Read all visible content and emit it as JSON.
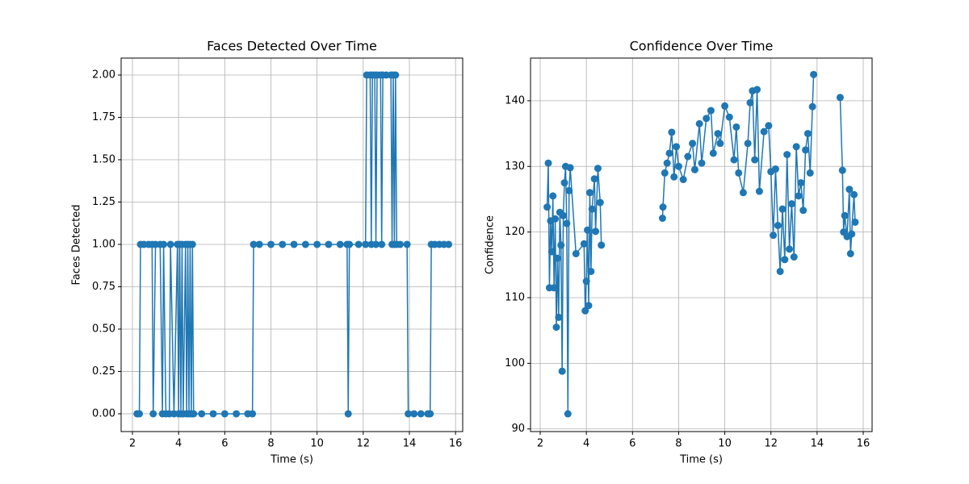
{
  "chart_data": [
    {
      "type": "line",
      "title": "Faces Detected Over Time",
      "x_label": "Time (s)",
      "y_label": "Faces Detected",
      "grid": true,
      "marker": "circle",
      "xlim": [
        1.51,
        16.31
      ],
      "ylim": [
        -0.105,
        2.1
      ],
      "xticks": [
        2,
        4,
        6,
        8,
        10,
        12,
        14,
        16
      ],
      "yticks": [
        {
          "value": 0,
          "label": "0.00"
        },
        {
          "value": 0.25,
          "label": "0.25"
        },
        {
          "value": 0.5,
          "label": "0.50"
        },
        {
          "value": 0.75,
          "label": "0.75"
        },
        {
          "value": 1,
          "label": "1.00"
        },
        {
          "value": 1.25,
          "label": "1.25"
        },
        {
          "value": 1.5,
          "label": "1.50"
        },
        {
          "value": 1.75,
          "label": "1.75"
        },
        {
          "value": 2,
          "label": "2.00"
        }
      ],
      "x": [
        2.2,
        2.3,
        2.35,
        2.5,
        2.7,
        2.85,
        2.9,
        3.0,
        3.2,
        3.3,
        3.35,
        3.45,
        3.6,
        3.65,
        3.8,
        3.95,
        4.0,
        4.05,
        4.1,
        4.15,
        4.2,
        4.3,
        4.35,
        4.4,
        4.45,
        4.5,
        4.55,
        4.6,
        4.65,
        5.0,
        5.5,
        6.0,
        6.5,
        7.0,
        7.2,
        7.25,
        7.5,
        8.0,
        8.5,
        9.0,
        9.5,
        10.0,
        10.5,
        11.0,
        11.3,
        11.35,
        11.4,
        11.8,
        12.1,
        12.15,
        12.3,
        12.35,
        12.4,
        12.5,
        12.55,
        12.6,
        12.75,
        12.8,
        12.85,
        13.0,
        13.2,
        13.25,
        13.3,
        13.35,
        13.4,
        13.45,
        13.6,
        13.9,
        13.95,
        14.2,
        14.5,
        14.8,
        14.9,
        14.95,
        15.1,
        15.3,
        15.5,
        15.7
      ],
      "series": [
        {
          "color": "#1f77b4",
          "values": [
            0,
            0,
            1,
            1,
            1,
            1,
            0,
            1,
            1,
            0,
            1,
            0,
            0,
            1,
            0,
            1,
            0,
            1,
            0,
            1,
            0,
            1,
            0,
            1,
            0,
            1,
            0,
            1,
            0,
            0,
            0,
            0,
            0,
            0,
            0,
            1,
            1,
            1,
            1,
            1,
            1,
            1,
            1,
            1,
            1,
            0,
            1,
            1,
            1,
            2,
            2,
            1,
            2,
            2,
            1,
            2,
            2,
            1,
            2,
            2,
            2,
            1,
            2,
            1,
            2,
            1,
            1,
            1,
            0,
            0,
            0,
            0,
            0,
            1,
            1,
            1,
            1,
            1
          ]
        }
      ]
    },
    {
      "type": "line",
      "title": "Confidence Over Time",
      "x_label": "Time (s)",
      "y_label": "Confidence",
      "grid": true,
      "marker": "circle",
      "xlim": [
        1.58,
        16.385
      ],
      "ylim": [
        89.6,
        146.5
      ],
      "xticks": [
        2,
        4,
        6,
        8,
        10,
        12,
        14,
        16
      ],
      "yticks": [
        90,
        100,
        110,
        120,
        130,
        140
      ],
      "x": [
        2.3,
        2.35,
        2.4,
        2.45,
        2.5,
        2.55,
        2.6,
        2.65,
        2.7,
        2.75,
        2.8,
        2.85,
        2.9,
        2.95,
        3.0,
        3.05,
        3.1,
        3.15,
        3.2,
        3.25,
        3.3,
        3.55,
        3.9,
        3.95,
        4.0,
        4.05,
        4.1,
        4.15,
        4.2,
        4.25,
        4.35,
        4.4,
        4.5,
        4.6,
        4.65,
        5.5,
        7.3,
        7.32,
        7.4,
        7.5,
        7.6,
        7.7,
        7.8,
        7.9,
        8.0,
        8.2,
        8.4,
        8.6,
        8.7,
        8.9,
        9.0,
        9.2,
        9.4,
        9.5,
        9.7,
        9.8,
        10.0,
        10.2,
        10.4,
        10.5,
        10.6,
        10.8,
        11.0,
        11.1,
        11.2,
        11.3,
        11.4,
        11.5,
        11.7,
        11.9,
        12.0,
        12.1,
        12.2,
        12.3,
        12.4,
        12.5,
        12.6,
        12.7,
        12.8,
        12.9,
        13.0,
        13.1,
        13.2,
        13.3,
        13.4,
        13.5,
        13.6,
        13.7,
        13.8,
        13.85,
        14.4,
        15.0,
        15.1,
        15.15,
        15.2,
        15.3,
        15.4,
        15.45,
        15.5,
        15.6,
        15.65
      ],
      "series": [
        {
          "color": "#1f77b4",
          "values": [
            123.8,
            130.5,
            111.5,
            121.7,
            117,
            125.5,
            111.5,
            122,
            105.5,
            116,
            107,
            123,
            118,
            98.8,
            122.5,
            127.5,
            130,
            121.3,
            92.3,
            126.3,
            129.8,
            116.7,
            118.2,
            108,
            112.5,
            120.3,
            108.8,
            126,
            114,
            123.5,
            128.1,
            120.1,
            129.7,
            124.5,
            118,
            null,
            122.1,
            123.8,
            129,
            130.5,
            132,
            135.2,
            128.4,
            133,
            130,
            128,
            131.5,
            133.5,
            129.5,
            136.5,
            130.5,
            137.3,
            138.5,
            132,
            135,
            133.5,
            139.2,
            137.5,
            131,
            136,
            129,
            126,
            133.5,
            139.7,
            141.5,
            131,
            141.7,
            126.2,
            135.3,
            136.2,
            129.2,
            119.5,
            129.6,
            121,
            114,
            123.5,
            115.8,
            131.8,
            117.4,
            124.3,
            116.2,
            133,
            125.5,
            127.5,
            123.3,
            132.5,
            135,
            129,
            139.1,
            144,
            null,
            140.5,
            129.4,
            120,
            122.5,
            119.3,
            126.5,
            116.7,
            119.7,
            125.7,
            121.5
          ]
        }
      ]
    }
  ]
}
